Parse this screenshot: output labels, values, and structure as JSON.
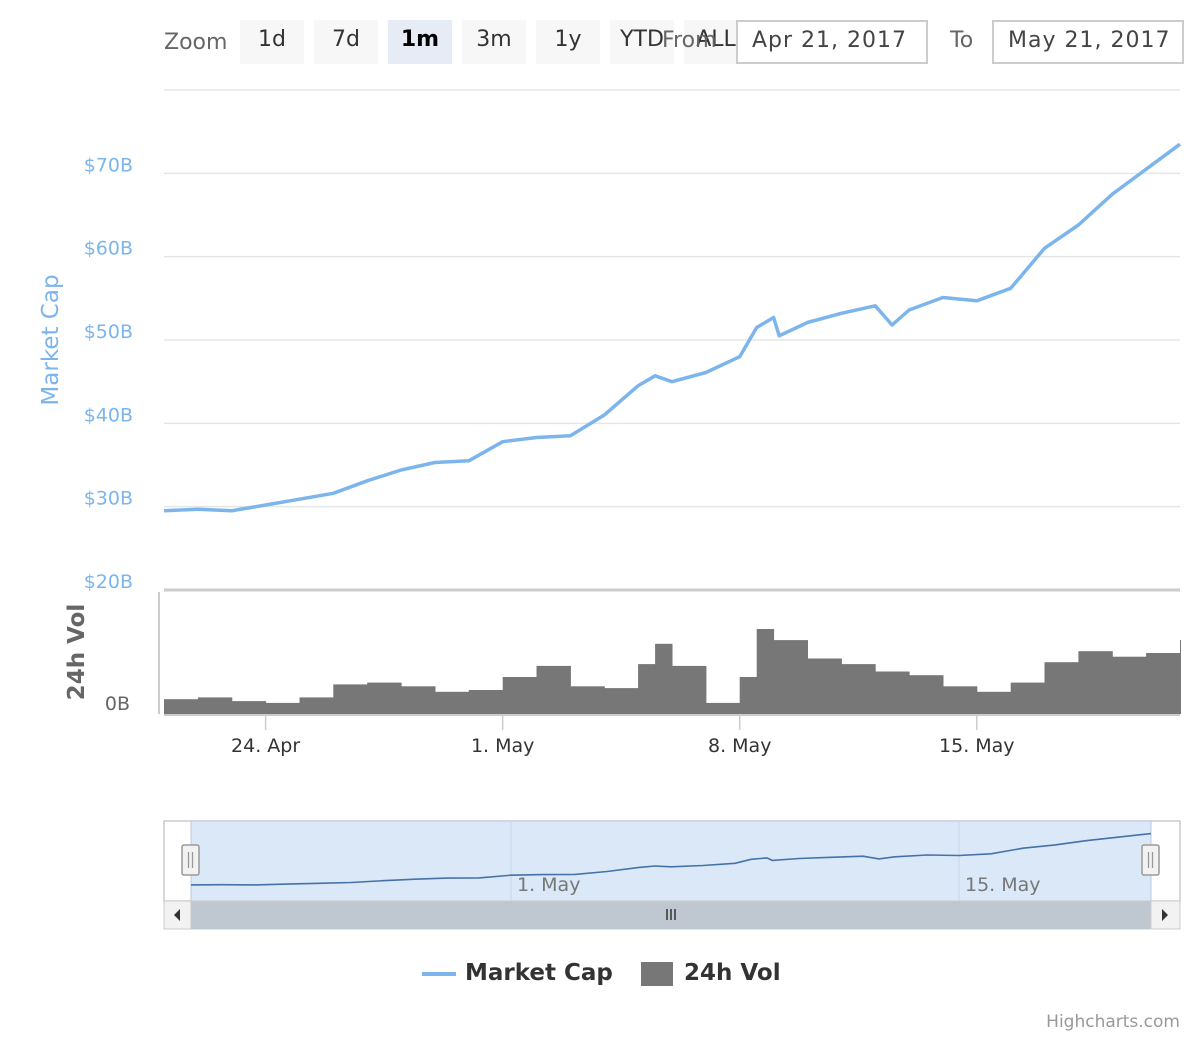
{
  "range_selector": {
    "zoom_label": "Zoom",
    "buttons": [
      "1d",
      "7d",
      "1m",
      "3m",
      "1y",
      "YTD",
      "ALL"
    ],
    "selected": "1m",
    "from_label": "From",
    "to_label": "To",
    "from_value": "Apr 21, 2017",
    "to_value": "May 21, 2017"
  },
  "legend": {
    "market_cap": "Market Cap",
    "volume": "24h Vol"
  },
  "credits": "Highcharts.com",
  "colors": {
    "market_cap": "#7cb5ec",
    "volume": "#777777",
    "navigator_mask": "#d6e6f7",
    "navigator_line": "#4572a7",
    "grid": "#e6e6e6"
  },
  "chart_data": {
    "type": "line",
    "x_start": "2017-04-21",
    "x_end": "2017-05-21",
    "x_ticks": [
      "24. Apr",
      "1. May",
      "8. May",
      "15. May"
    ],
    "x_tick_dates": [
      "2017-04-24",
      "2017-05-01",
      "2017-05-08",
      "2017-05-15"
    ],
    "navigator_ticks": [
      "1. May",
      "15. May"
    ],
    "navigator_tick_dates": [
      "2017-05-01",
      "2017-05-15"
    ],
    "y_axis": {
      "title": "Market Cap",
      "tick_labels": [
        "$20B",
        "$30B",
        "$40B",
        "$50B",
        "$60B",
        "$70B"
      ],
      "tick_values": [
        20,
        30,
        40,
        50,
        60,
        70
      ],
      "range": [
        20,
        80
      ],
      "unit": "USD billions"
    },
    "volume_axis": {
      "title": "24h Vol",
      "tick_labels": [
        "0B"
      ],
      "range_units": "USD billions",
      "range": [
        0,
        3.3
      ]
    },
    "series": [
      {
        "name": "Market Cap",
        "dates": [
          "2017-04-21",
          "2017-04-22",
          "2017-04-23",
          "2017-04-24",
          "2017-04-25",
          "2017-04-26",
          "2017-04-27",
          "2017-04-28",
          "2017-04-29",
          "2017-04-30",
          "2017-05-01",
          "2017-05-02",
          "2017-05-03",
          "2017-05-04",
          "2017-05-05",
          "2017-05-05 12:00",
          "2017-05-06",
          "2017-05-07",
          "2017-05-08",
          "2017-05-08 12:00",
          "2017-05-09",
          "2017-05-09 04:00",
          "2017-05-10",
          "2017-05-11",
          "2017-05-12",
          "2017-05-12 12:00",
          "2017-05-13",
          "2017-05-14",
          "2017-05-15",
          "2017-05-16",
          "2017-05-17",
          "2017-05-18",
          "2017-05-19",
          "2017-05-20",
          "2017-05-21"
        ],
        "values": [
          29.5,
          29.7,
          29.5,
          30.2,
          30.9,
          31.6,
          33.1,
          34.4,
          35.3,
          35.5,
          37.8,
          38.3,
          38.5,
          41.0,
          44.5,
          45.7,
          45.0,
          46.1,
          48.0,
          51.5,
          52.7,
          50.5,
          52.1,
          53.2,
          54.1,
          51.8,
          53.6,
          55.1,
          54.7,
          56.2,
          61.0,
          63.8,
          67.5,
          70.5,
          73.5
        ]
      },
      {
        "name": "24h Vol",
        "type": "column",
        "dates": [
          "2017-04-21",
          "2017-04-22",
          "2017-04-23",
          "2017-04-24",
          "2017-04-25",
          "2017-04-26",
          "2017-04-27",
          "2017-04-28",
          "2017-04-29",
          "2017-04-30",
          "2017-05-01",
          "2017-05-02",
          "2017-05-03",
          "2017-05-04",
          "2017-05-05",
          "2017-05-05 12:00",
          "2017-05-06",
          "2017-05-07",
          "2017-05-08",
          "2017-05-08 12:00",
          "2017-05-09",
          "2017-05-10",
          "2017-05-11",
          "2017-05-12",
          "2017-05-13",
          "2017-05-14",
          "2017-05-15",
          "2017-05-16",
          "2017-05-17",
          "2017-05-18",
          "2017-05-19",
          "2017-05-20",
          "2017-05-21"
        ],
        "values": [
          0.4,
          0.45,
          0.35,
          0.3,
          0.45,
          0.8,
          0.85,
          0.75,
          0.6,
          0.65,
          1.0,
          1.3,
          0.75,
          0.7,
          1.35,
          1.9,
          1.3,
          0.3,
          1.0,
          2.3,
          2.0,
          1.5,
          1.35,
          1.15,
          1.05,
          0.75,
          0.6,
          0.85,
          1.4,
          1.7,
          1.55,
          1.65,
          2.0
        ]
      }
    ]
  }
}
